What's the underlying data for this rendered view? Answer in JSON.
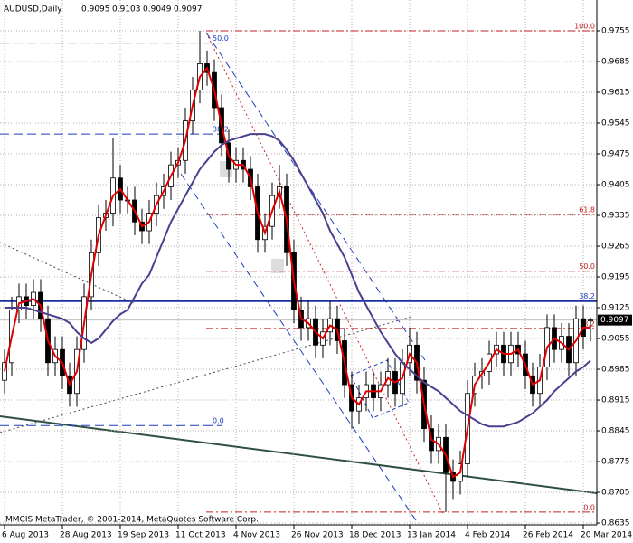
{
  "chart_data": {
    "type": "candlestick",
    "title": "AUDUSD,Daily",
    "footer": "MMCIS MetaTrader, © 2001-2014, MetaQuotes Software Corp.",
    "categories": [
      "6 Aug 2013",
      null,
      null,
      null,
      null,
      null,
      null,
      null,
      "28 Aug 2013",
      null,
      null,
      null,
      null,
      null,
      null,
      null,
      "19 Sep 2013",
      null,
      null,
      null,
      null,
      null,
      null,
      null,
      "11 Oct 2013",
      null,
      null,
      null,
      null,
      null,
      null,
      null,
      "4 Nov 2013",
      null,
      null,
      null,
      null,
      null,
      null,
      null,
      "26 Nov 2013",
      null,
      null,
      null,
      null,
      null,
      null,
      null,
      "18 Dec 2013",
      null,
      null,
      null,
      null,
      null,
      null,
      null,
      "13 Jan 2014",
      null,
      null,
      null,
      null,
      null,
      null,
      null,
      "4 Feb 2014",
      null,
      null,
      null,
      null,
      null,
      null,
      null,
      "26 Feb 2014",
      null,
      null,
      null,
      null,
      null,
      null,
      null,
      "20 Mar 2014",
      null
    ],
    "open": [
      0.896,
      0.9,
      0.912,
      0.915,
      0.913,
      0.916,
      0.91,
      0.9,
      0.903,
      0.897,
      0.893,
      0.903,
      0.915,
      0.925,
      0.933,
      0.934,
      0.942,
      0.937,
      0.937,
      0.932,
      0.93,
      0.934,
      0.938,
      0.94,
      0.945,
      0.946,
      0.955,
      0.962,
      0.968,
      0.966,
      0.958,
      0.95,
      0.944,
      0.946,
      0.944,
      0.94,
      0.928,
      0.931,
      0.938,
      0.94,
      0.925,
      0.912,
      0.908,
      0.91,
      0.904,
      0.907,
      0.91,
      0.905,
      0.895,
      0.889,
      0.892,
      0.895,
      0.892,
      0.895,
      0.898,
      0.893,
      0.9,
      0.904,
      0.896,
      0.885,
      0.88,
      0.883,
      0.875,
      0.873,
      0.877,
      0.893,
      0.897,
      0.898,
      0.902,
      0.904,
      0.9,
      0.904,
      0.902,
      0.897,
      0.893,
      0.899,
      0.908,
      0.903,
      0.906,
      0.9,
      0.91,
      0.9095
    ],
    "high": [
      0.903,
      0.915,
      0.918,
      0.918,
      0.919,
      0.919,
      0.913,
      0.906,
      0.906,
      0.9,
      0.906,
      0.918,
      0.928,
      0.936,
      0.937,
      0.951,
      0.945,
      0.94,
      0.94,
      0.935,
      0.937,
      0.941,
      0.943,
      0.948,
      0.949,
      0.958,
      0.965,
      0.9755,
      0.971,
      0.969,
      0.961,
      0.953,
      0.949,
      0.949,
      0.947,
      0.943,
      0.934,
      0.941,
      0.945,
      0.943,
      0.928,
      0.915,
      0.914,
      0.913,
      0.91,
      0.914,
      0.913,
      0.908,
      0.898,
      0.895,
      0.898,
      0.898,
      0.898,
      0.901,
      0.901,
      0.903,
      0.908,
      0.907,
      0.899,
      0.888,
      0.886,
      0.886,
      0.878,
      0.88,
      0.896,
      0.9,
      0.901,
      0.905,
      0.907,
      0.907,
      0.907,
      0.907,
      0.905,
      0.9,
      0.902,
      0.911,
      0.911,
      0.909,
      0.909,
      0.913,
      0.913,
      0.9103
    ],
    "low": [
      0.893,
      0.897,
      0.909,
      0.91,
      0.91,
      0.907,
      0.897,
      0.897,
      0.894,
      0.89,
      0.89,
      0.9,
      0.912,
      0.922,
      0.93,
      0.931,
      0.934,
      0.934,
      0.929,
      0.927,
      0.927,
      0.931,
      0.935,
      0.937,
      0.942,
      0.943,
      0.952,
      0.959,
      0.963,
      0.955,
      0.947,
      0.941,
      0.941,
      0.941,
      0.937,
      0.925,
      0.925,
      0.928,
      0.935,
      0.922,
      0.909,
      0.905,
      0.905,
      0.901,
      0.901,
      0.904,
      0.902,
      0.892,
      0.885,
      0.886,
      0.889,
      0.889,
      0.889,
      0.892,
      0.89,
      0.89,
      0.897,
      0.893,
      0.882,
      0.877,
      0.877,
      0.866,
      0.869,
      0.87,
      0.874,
      0.89,
      0.894,
      0.895,
      0.899,
      0.897,
      0.897,
      0.899,
      0.894,
      0.89,
      0.89,
      0.896,
      0.9,
      0.9,
      0.897,
      0.897,
      0.903,
      0.9049
    ],
    "close": [
      0.9,
      0.912,
      0.915,
      0.913,
      0.916,
      0.91,
      0.9,
      0.903,
      0.897,
      0.893,
      0.903,
      0.915,
      0.925,
      0.933,
      0.934,
      0.942,
      0.937,
      0.937,
      0.932,
      0.93,
      0.934,
      0.938,
      0.94,
      0.945,
      0.946,
      0.955,
      0.962,
      0.968,
      0.966,
      0.958,
      0.95,
      0.944,
      0.946,
      0.944,
      0.94,
      0.928,
      0.931,
      0.938,
      0.94,
      0.925,
      0.912,
      0.908,
      0.91,
      0.904,
      0.907,
      0.91,
      0.905,
      0.895,
      0.889,
      0.892,
      0.895,
      0.892,
      0.895,
      0.898,
      0.893,
      0.9,
      0.904,
      0.896,
      0.885,
      0.88,
      0.883,
      0.875,
      0.873,
      0.877,
      0.893,
      0.897,
      0.898,
      0.902,
      0.904,
      0.9,
      0.904,
      0.902,
      0.897,
      0.893,
      0.899,
      0.908,
      0.903,
      0.906,
      0.9,
      0.91,
      0.906,
      0.9097
    ],
    "lines": [
      {
        "color": "#e00000",
        "values": [
          0.898,
          0.906,
          0.9135,
          0.914,
          0.9145,
          0.913,
          0.905,
          0.9015,
          0.9,
          0.895,
          0.898,
          0.909,
          0.92,
          0.929,
          0.9335,
          0.938,
          0.9395,
          0.937,
          0.9345,
          0.931,
          0.932,
          0.936,
          0.939,
          0.9425,
          0.9455,
          0.9505,
          0.9585,
          0.965,
          0.967,
          0.962,
          0.954,
          0.947,
          0.945,
          0.945,
          0.942,
          0.934,
          0.9295,
          0.9345,
          0.939,
          0.9325,
          0.9185,
          0.91,
          0.909,
          0.907,
          0.9055,
          0.9085,
          0.9075,
          0.9,
          0.892,
          0.8905,
          0.8935,
          0.8935,
          0.8935,
          0.8965,
          0.8955,
          0.8965,
          0.902,
          0.9,
          0.8905,
          0.8825,
          0.8815,
          0.879,
          0.874,
          0.875,
          0.885,
          0.895,
          0.8975,
          0.9,
          0.903,
          0.902,
          0.902,
          0.903,
          0.8995,
          0.895,
          0.896,
          0.9035,
          0.9055,
          0.9045,
          0.903,
          0.905,
          0.908,
          0.908
        ]
      },
      {
        "color": "#4b3f8f",
        "values": [
          0.9125,
          0.9125,
          0.9125,
          0.9125,
          0.912,
          0.9115,
          0.911,
          0.9105,
          0.91,
          0.909,
          0.907,
          0.9055,
          0.9045,
          0.9055,
          0.9075,
          0.9095,
          0.911,
          0.912,
          0.915,
          0.918,
          0.92,
          0.924,
          0.928,
          0.932,
          0.935,
          0.938,
          0.941,
          0.944,
          0.946,
          0.948,
          0.9495,
          0.9505,
          0.951,
          0.9515,
          0.952,
          0.952,
          0.952,
          0.9515,
          0.9505,
          0.9485,
          0.946,
          0.943,
          0.94,
          0.937,
          0.934,
          0.93,
          0.927,
          0.924,
          0.92,
          0.916,
          0.913,
          0.91,
          0.907,
          0.9045,
          0.902,
          0.9,
          0.8985,
          0.897,
          0.8955,
          0.8945,
          0.8935,
          0.892,
          0.8905,
          0.889,
          0.888,
          0.887,
          0.886,
          0.8855,
          0.8855,
          0.8855,
          0.886,
          0.8865,
          0.8875,
          0.8885,
          0.89,
          0.8915,
          0.8935,
          0.895,
          0.8965,
          0.898,
          0.899,
          0.9005
        ]
      }
    ],
    "fib_right": [
      {
        "value": 0.9755,
        "label": "100.0"
      },
      {
        "value": 0.9337,
        "label": "61.8"
      },
      {
        "value": 0.9208,
        "label": "50.0"
      },
      {
        "value": 0.9078,
        "label": "38.2"
      },
      {
        "value": 0.866,
        "label": "0.0"
      }
    ],
    "fib_left": [
      {
        "value": 0.9727,
        "label": "50.0"
      },
      {
        "value": 0.952,
        "label": "38.2"
      },
      {
        "value": 0.8857,
        "label": "0.0"
      }
    ],
    "level_blue": {
      "value": 0.914,
      "label": "38.2"
    },
    "ylim": [
      0.8631,
      0.9825
    ],
    "yticks": [
      0.9755,
      0.9685,
      0.9615,
      0.9545,
      0.9475,
      0.9405,
      0.9335,
      0.9265,
      0.9195,
      0.9125,
      0.9055,
      0.8985,
      0.8915,
      0.8845,
      0.8775,
      0.8705,
      0.8635
    ],
    "grid": true
  }
}
